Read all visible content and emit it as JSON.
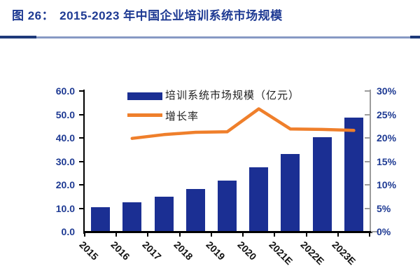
{
  "header": {
    "figure_label": "图 26：",
    "title": "2015-2023 年中国企业培训系统市场规模"
  },
  "legend": {
    "items": [
      {
        "label": "培训系统市场规模（亿元）",
        "swatch": "bar-swatch"
      },
      {
        "label": "增长率",
        "swatch": "line-swatch"
      }
    ]
  },
  "chart_data": {
    "type": "bar",
    "title": "2015-2023 年中国企业培训系统市场规模",
    "categories": [
      "2015",
      "2016",
      "2017",
      "2018",
      "2019",
      "2020",
      "2021E",
      "2022E",
      "2023E"
    ],
    "series": [
      {
        "name": "培训系统市场规模（亿元）",
        "type": "bar",
        "axis": "left",
        "color": "#1B2F93",
        "values": [
          10.3,
          12.4,
          15.0,
          18.2,
          21.9,
          27.6,
          33.0,
          40.3,
          48.7
        ]
      },
      {
        "name": "增长率",
        "type": "line",
        "axis": "right",
        "color": "#EF7F2B",
        "values": [
          null,
          19.9,
          20.7,
          21.2,
          21.3,
          26.2,
          21.9,
          21.8,
          21.6
        ]
      }
    ],
    "left_axis": {
      "min": 0,
      "max": 60,
      "step": 10,
      "tick_labels": [
        "0.0",
        "10.0",
        "20.0",
        "30.0",
        "40.0",
        "50.0",
        "60.0"
      ]
    },
    "right_axis": {
      "min": 0,
      "max": 30,
      "step": 5,
      "tick_labels": [
        "0%",
        "5%",
        "10%",
        "15%",
        "20%",
        "25%",
        "30%"
      ]
    },
    "grid": false,
    "legend_position": "top",
    "x_label_rotation_deg": 45
  },
  "colors": {
    "title": "#1E3A93",
    "axis_label": "#1E3A93",
    "bar": "#1B2F93",
    "line": "#EF7F2B",
    "divider_dark": "#1E3A7A",
    "divider_light": "#8799C4",
    "axis_black": "#000000",
    "axis_gray": "#9C9C9C",
    "x_label": "#111111"
  }
}
